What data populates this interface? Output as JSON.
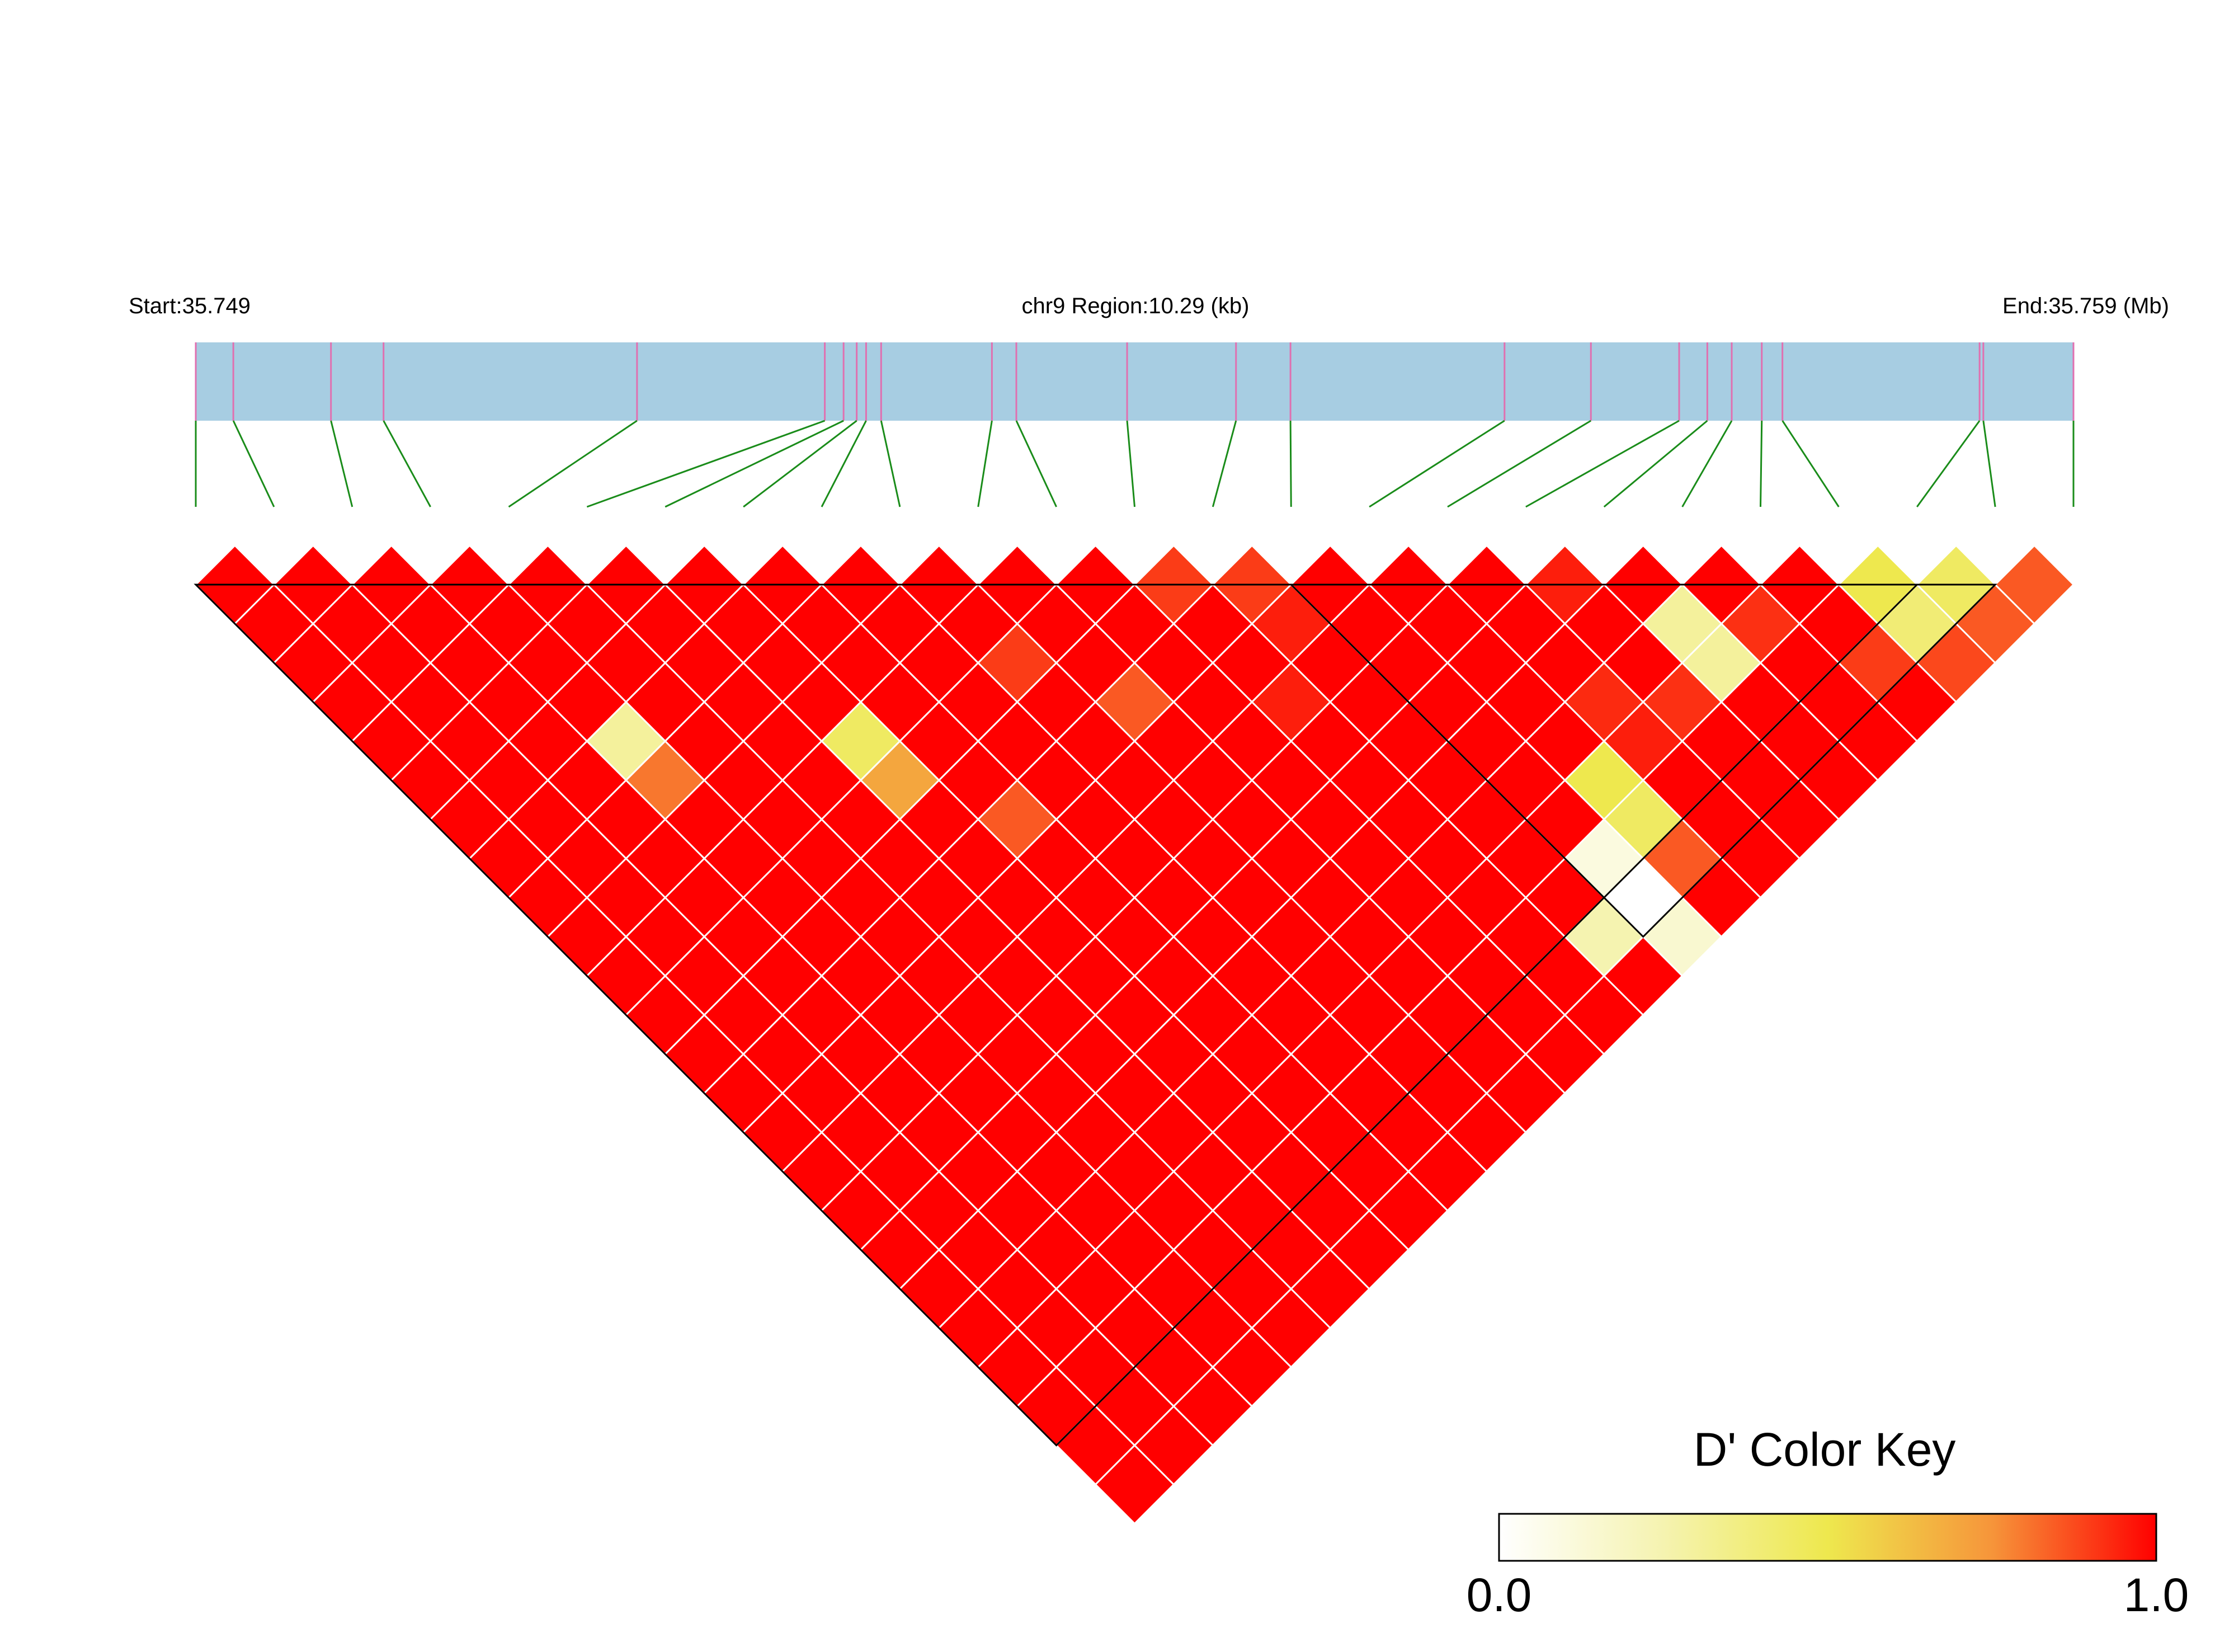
{
  "header": {
    "start_label": "Start:35.749",
    "region_label": "chr9 Region:10.29 (kb)",
    "end_label": "End:35.759 (Mb)"
  },
  "color_key": {
    "title": "D' Color Key",
    "min_label": "0.0",
    "max_label": "1.0",
    "stops": [
      "#ffffff",
      "#f5f3b0",
      "#eee84e",
      "#f6953a",
      "#ff0000"
    ]
  },
  "colors": {
    "track_fill": "#a7cde2",
    "snp_marker": "#e070b0",
    "connector": "#1a8c1a",
    "cell_border": "#ffffff",
    "block_outline": "#000000"
  },
  "chart_data": {
    "type": "heatmap",
    "title": "D' Color Key",
    "measure": "D'",
    "chromosome": "chr9",
    "region_kb": 10.29,
    "start_mb": 35.749,
    "end_mb": 35.759,
    "n_snps": 25,
    "snp_positions_relative": [
      0.0,
      0.02,
      0.072,
      0.1,
      0.235,
      0.335,
      0.345,
      0.352,
      0.357,
      0.365,
      0.424,
      0.437,
      0.496,
      0.554,
      0.583,
      0.697,
      0.743,
      0.79,
      0.805,
      0.818,
      0.834,
      0.845,
      0.95,
      0.952,
      1.0
    ],
    "default_dprime": 1.0,
    "dprime_exceptions": [
      {
        "i": 0,
        "j": 1,
        "dprime": 1.0
      },
      {
        "i": 3,
        "j": 8,
        "dprime": 0.3
      },
      {
        "i": 3,
        "j": 9,
        "dprime": 0.8
      },
      {
        "i": 6,
        "j": 11,
        "dprime": 0.45
      },
      {
        "i": 6,
        "j": 12,
        "dprime": 0.7
      },
      {
        "i": 7,
        "j": 14,
        "dprime": 0.85
      },
      {
        "i": 9,
        "j": 12,
        "dprime": 0.9
      },
      {
        "i": 10,
        "j": 14,
        "dprime": 0.85
      },
      {
        "i": 12,
        "j": 13,
        "dprime": 0.9
      },
      {
        "i": 12,
        "j": 16,
        "dprime": 0.95
      },
      {
        "i": 13,
        "j": 14,
        "dprime": 0.9
      },
      {
        "i": 13,
        "j": 15,
        "dprime": 0.95
      },
      {
        "i": 13,
        "j": 23,
        "dprime": 0.25
      },
      {
        "i": 14,
        "j": 22,
        "dprime": 0.1
      },
      {
        "i": 14,
        "j": 23,
        "dprime": 0.0
      },
      {
        "i": 14,
        "j": 24,
        "dprime": 0.15
      },
      {
        "i": 15,
        "j": 21,
        "dprime": 0.5
      },
      {
        "i": 15,
        "j": 22,
        "dprime": 0.45
      },
      {
        "i": 15,
        "j": 23,
        "dprime": 0.85
      },
      {
        "i": 16,
        "j": 20,
        "dprime": 0.93
      },
      {
        "i": 16,
        "j": 21,
        "dprime": 0.95
      },
      {
        "i": 17,
        "j": 18,
        "dprime": 0.95
      },
      {
        "i": 17,
        "j": 21,
        "dprime": 0.92
      },
      {
        "i": 18,
        "j": 20,
        "dprime": 0.3
      },
      {
        "i": 18,
        "j": 21,
        "dprime": 0.3
      },
      {
        "i": 19,
        "j": 21,
        "dprime": 0.92
      },
      {
        "i": 20,
        "j": 23,
        "dprime": 0.9
      },
      {
        "i": 21,
        "j": 22,
        "dprime": 0.5
      },
      {
        "i": 21,
        "j": 23,
        "dprime": 0.4
      },
      {
        "i": 21,
        "j": 24,
        "dprime": 0.88
      },
      {
        "i": 22,
        "j": 23,
        "dprime": 0.45
      },
      {
        "i": 22,
        "j": 24,
        "dprime": 0.85
      },
      {
        "i": 23,
        "j": 24,
        "dprime": 0.85
      }
    ],
    "blocks": [
      [
        0,
        22
      ],
      [
        14,
        23
      ]
    ],
    "legend": "bottom-right",
    "grid": true
  }
}
